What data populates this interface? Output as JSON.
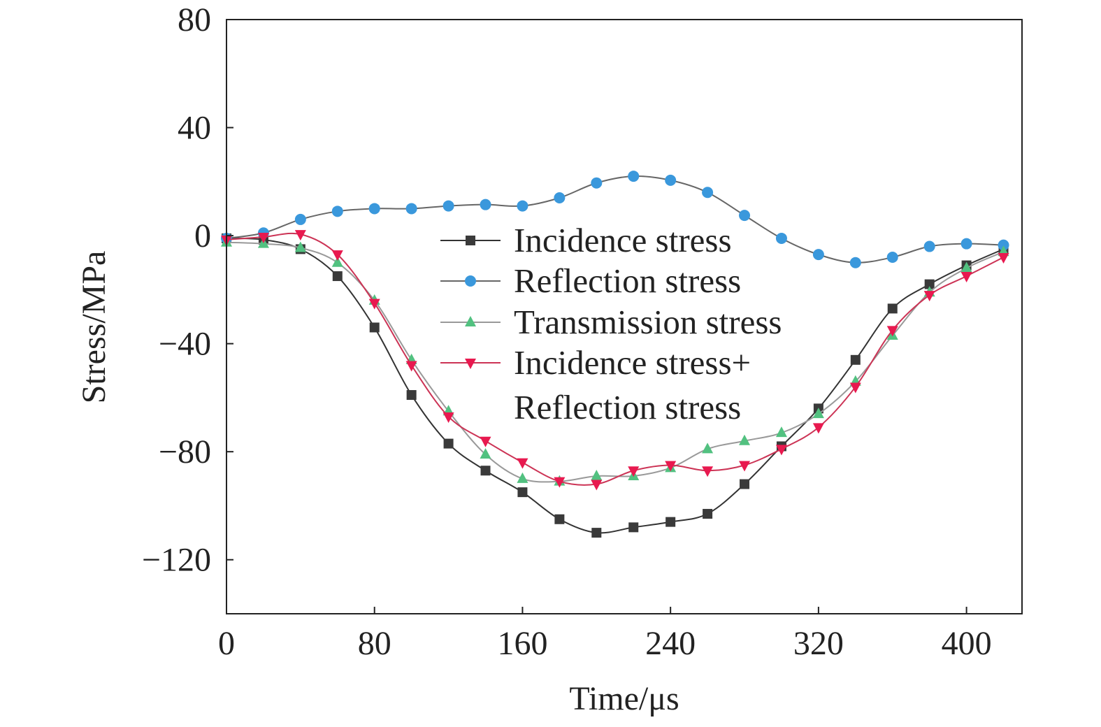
{
  "chart_data": {
    "type": "line",
    "title": "",
    "xlabel": "Time/μs",
    "ylabel": "Stress/MPa",
    "xlim": [
      0,
      430
    ],
    "ylim": [
      -140,
      80
    ],
    "xticks": [
      0,
      80,
      160,
      240,
      320,
      400
    ],
    "yticks": [
      80,
      40,
      0,
      -40,
      -80,
      -120
    ],
    "xtick_labels": [
      "0",
      "80",
      "160",
      "240",
      "320",
      "400"
    ],
    "ytick_labels": [
      "80",
      "40",
      "0",
      "−40",
      "−80",
      "−120"
    ],
    "grid": false,
    "legend_position": "center",
    "x": [
      0,
      20,
      40,
      60,
      80,
      100,
      120,
      140,
      160,
      180,
      200,
      220,
      240,
      260,
      280,
      300,
      320,
      340,
      360,
      380,
      400,
      420
    ],
    "series": [
      {
        "name": "Incidence stress",
        "marker": "square",
        "color": "#333333",
        "marker_color": "#3a3a3a",
        "values": [
          -1,
          -1.5,
          -5,
          -15,
          -34,
          -59,
          -77,
          -87,
          -95,
          -105,
          -110,
          -108,
          -106,
          -103,
          -92,
          -78,
          -64,
          -46,
          -27,
          -18,
          -11,
          -5
        ]
      },
      {
        "name": "Reflection stress",
        "marker": "circle",
        "color": "#666666",
        "marker_color": "#3a98dc",
        "values": [
          -1,
          1,
          6,
          9,
          10,
          10,
          11,
          11.5,
          11,
          14,
          19.5,
          22,
          20.5,
          16,
          7.5,
          -1,
          -7,
          -10,
          -8,
          -4,
          -3,
          -3.5
        ]
      },
      {
        "name": "Transmission stress",
        "marker": "triangle-up",
        "color": "#999999",
        "marker_color": "#52c180",
        "values": [
          -2.5,
          -3,
          -4.5,
          -10,
          -24,
          -46,
          -65,
          -81,
          -90,
          -91,
          -89,
          -89,
          -86,
          -79,
          -76,
          -73,
          -66,
          -54,
          -37,
          -21,
          -12,
          -6
        ]
      },
      {
        "name": "Incidence stress+\nReflection stress",
        "marker": "triangle-down",
        "color": "#cc3355",
        "marker_color": "#e8194f",
        "values": [
          -1.5,
          -0.5,
          0.5,
          -7,
          -25,
          -48,
          -67,
          -76,
          -84,
          -91,
          -92,
          -87,
          -85,
          -87,
          -85,
          -79,
          -71,
          -56,
          -35,
          -22,
          -15,
          -8
        ]
      }
    ],
    "legend_labels": [
      {
        "lines": [
          "Incidence stress"
        ]
      },
      {
        "lines": [
          "Reflection stress"
        ]
      },
      {
        "lines": [
          "Transmission stress"
        ]
      },
      {
        "lines": [
          "Incidence stress+",
          "Reflection stress"
        ]
      }
    ]
  }
}
